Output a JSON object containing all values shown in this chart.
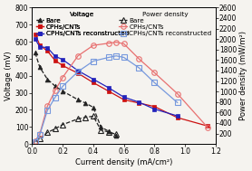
{
  "xlabel": "Current density (mA/cm²)",
  "ylabel_left": "Voltage (mV)",
  "ylabel_right": "Power density (mW/m²)",
  "xlim": [
    0,
    1.2
  ],
  "ylim_left": [
    0,
    800
  ],
  "ylim_right": [
    0,
    2600
  ],
  "voltage_bare_x": [
    0.02,
    0.05,
    0.1,
    0.15,
    0.2,
    0.3,
    0.35,
    0.4,
    0.45,
    0.5,
    0.55
  ],
  "voltage_bare_y": [
    535,
    450,
    380,
    340,
    310,
    260,
    240,
    215,
    100,
    75,
    50
  ],
  "voltage_cphs_cnts_x": [
    0.02,
    0.05,
    0.1,
    0.15,
    0.2,
    0.3,
    0.4,
    0.5,
    0.6,
    0.7,
    0.8,
    0.95,
    1.15
  ],
  "voltage_cphs_cnts_y": [
    645,
    580,
    545,
    490,
    460,
    415,
    360,
    310,
    260,
    240,
    220,
    155,
    105
  ],
  "voltage_recon_x": [
    0.02,
    0.05,
    0.1,
    0.15,
    0.2,
    0.3,
    0.4,
    0.5,
    0.6,
    0.7,
    0.8,
    0.95
  ],
  "voltage_recon_y": [
    615,
    570,
    565,
    515,
    495,
    430,
    380,
    330,
    275,
    245,
    205,
    165
  ],
  "power_bare_x": [
    0.02,
    0.05,
    0.1,
    0.15,
    0.2,
    0.3,
    0.35,
    0.4,
    0.45,
    0.5,
    0.55
  ],
  "power_bare_y": [
    50,
    100,
    220,
    290,
    370,
    480,
    510,
    530,
    265,
    230,
    185
  ],
  "power_cphs_cnts_x": [
    0.02,
    0.05,
    0.1,
    0.15,
    0.2,
    0.3,
    0.4,
    0.5,
    0.55,
    0.6,
    0.7,
    0.8,
    0.95,
    1.15
  ],
  "power_cphs_cnts_y": [
    60,
    190,
    720,
    1020,
    1270,
    1680,
    1880,
    1920,
    1940,
    1910,
    1620,
    1360,
    960,
    310
  ],
  "power_recon_x": [
    0.02,
    0.05,
    0.1,
    0.15,
    0.2,
    0.3,
    0.4,
    0.5,
    0.55,
    0.6,
    0.7,
    0.8,
    0.95
  ],
  "power_recon_y": [
    45,
    175,
    640,
    890,
    1100,
    1380,
    1580,
    1650,
    1680,
    1650,
    1450,
    1170,
    790
  ],
  "color_black": "#222222",
  "color_red": "#cc1111",
  "color_blue": "#2222bb",
  "color_pink": "#e87070",
  "color_light_blue": "#7799dd",
  "bg_color": "#f5f3ef",
  "fontsize": 6.0,
  "legend_fontsize": 5.2,
  "tick_fontsize": 5.5
}
